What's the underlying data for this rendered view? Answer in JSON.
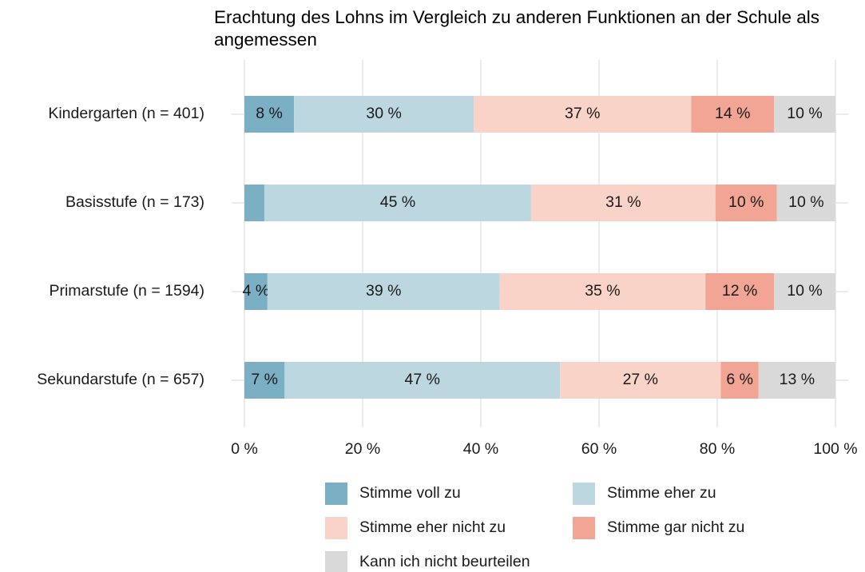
{
  "chart_data": {
    "type": "stacked-barh",
    "title": "Erachtung des Lohns im Vergleich zu anderen Funktionen an der Schule als angemessen",
    "categories": [
      "Kindergarten (n = 401)",
      "Basisstufe (n = 173)",
      "Primarstufe (n = 1594)",
      "Sekundarstufe (n = 657)"
    ],
    "series": [
      {
        "name": "Stimme voll zu",
        "color": "#7aafc4",
        "values": [
          8.4,
          3.4,
          3.9,
          6.8
        ],
        "value_labels": [
          "8 %",
          null,
          "4 %",
          "7 %"
        ]
      },
      {
        "name": "Stimme eher zu",
        "color": "#bdd7e1",
        "values": [
          30.4,
          45.1,
          39.3,
          46.6
        ],
        "value_labels": [
          "30 %",
          "45 %",
          "39 %",
          "47 %"
        ]
      },
      {
        "name": "Stimme eher nicht zu",
        "color": "#f9d3c8",
        "values": [
          36.8,
          31.2,
          34.8,
          27.2
        ],
        "value_labels": [
          "37 %",
          "31 %",
          "35 %",
          "27 %"
        ]
      },
      {
        "name": "Stimme gar nicht zu",
        "color": "#f3a595",
        "values": [
          14.0,
          10.4,
          11.6,
          6.4
        ],
        "value_labels": [
          "14 %",
          "10 %",
          "12 %",
          "6 %"
        ]
      },
      {
        "name": "Kann ich nicht beurteilen",
        "color": "#d9d9d9",
        "values": [
          10.4,
          9.9,
          10.4,
          13.0
        ],
        "value_labels": [
          "10 %",
          "10 %",
          "10 %",
          "13 %"
        ]
      }
    ],
    "xlim": [
      0,
      100
    ],
    "xticks": [
      {
        "value": 0,
        "label": "0 %"
      },
      {
        "value": 20,
        "label": "20 %"
      },
      {
        "value": 40,
        "label": "40 %"
      },
      {
        "value": 60,
        "label": "60 %"
      },
      {
        "value": 80,
        "label": "80 %"
      },
      {
        "value": 100,
        "label": "100 %"
      }
    ],
    "grid": true,
    "legend": "bottom"
  }
}
